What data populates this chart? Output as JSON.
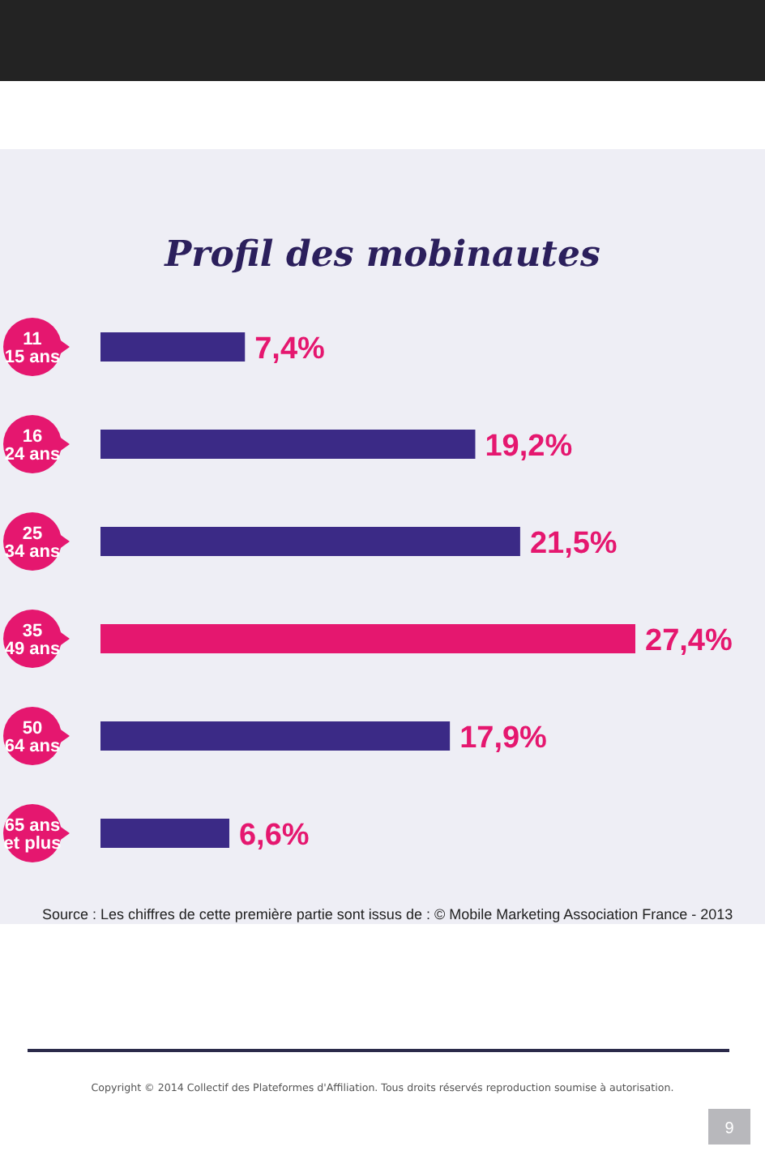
{
  "chart_data": {
    "type": "bar",
    "orientation": "horizontal",
    "title": "Profil des mobinautes",
    "categories": [
      "11\n15 ans",
      "16\n24 ans",
      "25\n34 ans",
      "35\n49 ans",
      "50\n64 ans",
      "65 ans\net plus"
    ],
    "values": [
      7.4,
      19.2,
      21.5,
      27.4,
      17.9,
      6.6
    ],
    "colors": [
      "#3b2a86",
      "#3b2a86",
      "#3b2a86",
      "#e5176f",
      "#3b2a86",
      "#3b2a86"
    ],
    "value_labels": [
      "7,4%",
      "19,2%",
      "21,5%",
      "27,4%",
      "17,9%",
      "6,6%"
    ],
    "annotations": [
      "Source : Les chiffres de cette première partie sont issus de : © Mobile Marketing Association France - 2013",
      "Copyright © 2014 Collectif des Plateformes d'Affiliation. Tous droits réservés reproduction soumise à autorisation.",
      "9"
    ]
  }
}
